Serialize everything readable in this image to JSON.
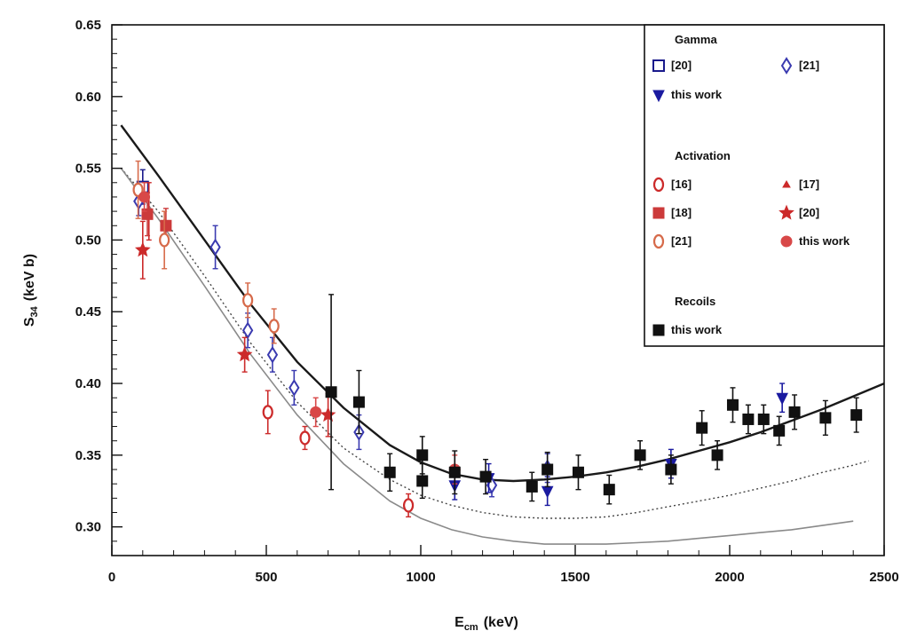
{
  "chart_data": {
    "type": "scatter",
    "xlabel": "E",
    "xlabel_sub": "cm",
    "xlabel_unit": "(keV)",
    "ylabel": "S",
    "ylabel_sub": "34",
    "ylabel_unit": "(keV b)",
    "xlim": [
      0,
      2500
    ],
    "ylim": [
      0.28,
      0.65
    ],
    "xticks": [
      0,
      500,
      1000,
      1500,
      2000,
      2500
    ],
    "yticks": [
      0.3,
      0.35,
      0.4,
      0.45,
      0.5,
      0.55,
      0.6,
      0.65
    ],
    "xtick_labels": [
      "0",
      "500",
      "1000",
      "1500",
      "2000",
      "2500"
    ],
    "ytick_labels": [
      "0.30",
      "0.35",
      "0.40",
      "0.45",
      "0.50",
      "0.55",
      "0.60",
      "0.65"
    ],
    "grid": false,
    "legend_position": "top-right",
    "legend_groups": [
      {
        "title": "Gamma",
        "entries": [
          {
            "label": "[20]",
            "series": "gamma_20"
          },
          {
            "label": "[21]",
            "series": "gamma_21"
          },
          {
            "label": "this work",
            "series": "gamma_this"
          }
        ]
      },
      {
        "title": "Activation",
        "entries": [
          {
            "label": "[16]",
            "series": "act_16"
          },
          {
            "label": "[17]",
            "series": "act_17"
          },
          {
            "label": "[18]",
            "series": "act_18"
          },
          {
            "label": "[20]",
            "series": "act_20"
          },
          {
            "label": "[21]",
            "series": "act_21"
          },
          {
            "label": "this work",
            "series": "act_this"
          }
        ]
      },
      {
        "title": "Recoils",
        "entries": [
          {
            "label": "this work",
            "series": "recoil_this"
          }
        ]
      }
    ],
    "series": [
      {
        "id": "gamma_20",
        "marker": "square-open",
        "color": "#1a1a8c",
        "points": [
          [
            100,
            0.537,
            0.012
          ]
        ]
      },
      {
        "id": "gamma_21",
        "marker": "diamond-open",
        "color": "#3a3ab0",
        "points": [
          [
            87,
            0.527,
            0.01
          ],
          [
            335,
            0.495,
            0.015
          ],
          [
            440,
            0.437,
            0.012
          ],
          [
            520,
            0.42,
            0.012
          ],
          [
            590,
            0.397,
            0.012
          ],
          [
            800,
            0.366,
            0.012
          ],
          [
            1230,
            0.329,
            0.008
          ],
          [
            1410,
            0.341,
            0.01
          ]
        ]
      },
      {
        "id": "gamma_this",
        "marker": "triangle-down",
        "color": "#1a1aa0",
        "points": [
          [
            1110,
            0.329,
            0.01
          ],
          [
            1220,
            0.334,
            0.01
          ],
          [
            1410,
            0.325,
            0.01
          ],
          [
            1810,
            0.344,
            0.01
          ],
          [
            2170,
            0.39,
            0.01
          ]
        ]
      },
      {
        "id": "act_16",
        "marker": "circle-open",
        "color": "#cc2a2a",
        "points": [
          [
            505,
            0.38,
            0.015
          ],
          [
            625,
            0.362,
            0.008
          ],
          [
            960,
            0.315,
            0.008
          ]
        ]
      },
      {
        "id": "act_17",
        "marker": "triangle-up",
        "color": "#cc2a2a",
        "points": [
          [
            120,
            0.52,
            0.02
          ]
        ]
      },
      {
        "id": "act_18",
        "marker": "square",
        "color": "#cc3a3a",
        "points": [
          [
            115,
            0.518,
            0.015
          ],
          [
            175,
            0.51,
            0.012
          ]
        ]
      },
      {
        "id": "act_20",
        "marker": "star",
        "color": "#cc2a2a",
        "points": [
          [
            100,
            0.493,
            0.02
          ],
          [
            430,
            0.42,
            0.012
          ],
          [
            700,
            0.378,
            0.015
          ]
        ]
      },
      {
        "id": "act_21",
        "marker": "circle-open",
        "color": "#d66a4a",
        "points": [
          [
            85,
            0.535,
            0.02
          ],
          [
            170,
            0.5,
            0.02
          ],
          [
            440,
            0.458,
            0.012
          ],
          [
            525,
            0.44,
            0.012
          ]
        ]
      },
      {
        "id": "act_this",
        "marker": "circle",
        "color": "#d84848",
        "points": [
          [
            105,
            0.53,
            0.01
          ],
          [
            1110,
            0.34,
            0.01
          ],
          [
            660,
            0.38,
            0.01
          ]
        ]
      },
      {
        "id": "recoil_this",
        "marker": "square",
        "color": "#111111",
        "points": [
          [
            710,
            0.394,
            0.068
          ],
          [
            800,
            0.387,
            0.022
          ],
          [
            900,
            0.338,
            0.013
          ],
          [
            1005,
            0.35,
            0.013
          ],
          [
            1005,
            0.332,
            0.012
          ],
          [
            1110,
            0.338,
            0.015
          ],
          [
            1210,
            0.335,
            0.012
          ],
          [
            1360,
            0.328,
            0.01
          ],
          [
            1410,
            0.34,
            0.012
          ],
          [
            1510,
            0.338,
            0.012
          ],
          [
            1610,
            0.326,
            0.01
          ],
          [
            1710,
            0.35,
            0.01
          ],
          [
            1810,
            0.34,
            0.01
          ],
          [
            1910,
            0.369,
            0.012
          ],
          [
            1960,
            0.35,
            0.01
          ],
          [
            2010,
            0.385,
            0.012
          ],
          [
            2060,
            0.375,
            0.01
          ],
          [
            2110,
            0.375,
            0.01
          ],
          [
            2160,
            0.367,
            0.01
          ],
          [
            2210,
            0.38,
            0.012
          ],
          [
            2310,
            0.376,
            0.012
          ],
          [
            2410,
            0.378,
            0.012
          ]
        ]
      }
    ],
    "curves": [
      {
        "id": "fit-solid",
        "style": "solid",
        "color": "#1a1a1a",
        "width": 2.4,
        "points": [
          [
            30,
            0.58
          ],
          [
            150,
            0.545
          ],
          [
            300,
            0.5
          ],
          [
            450,
            0.455
          ],
          [
            600,
            0.415
          ],
          [
            750,
            0.383
          ],
          [
            900,
            0.357
          ],
          [
            1000,
            0.345
          ],
          [
            1100,
            0.337
          ],
          [
            1200,
            0.333
          ],
          [
            1300,
            0.332
          ],
          [
            1400,
            0.333
          ],
          [
            1500,
            0.335
          ],
          [
            1600,
            0.338
          ],
          [
            1700,
            0.342
          ],
          [
            1800,
            0.347
          ],
          [
            1900,
            0.353
          ],
          [
            2000,
            0.359
          ],
          [
            2100,
            0.366
          ],
          [
            2200,
            0.374
          ],
          [
            2300,
            0.382
          ],
          [
            2400,
            0.391
          ],
          [
            2500,
            0.4
          ]
        ]
      },
      {
        "id": "model-dashed",
        "style": "dashed",
        "color": "#444444",
        "width": 1.4,
        "points": [
          [
            30,
            0.55
          ],
          [
            150,
            0.52
          ],
          [
            300,
            0.475
          ],
          [
            450,
            0.428
          ],
          [
            600,
            0.387
          ],
          [
            750,
            0.355
          ],
          [
            900,
            0.333
          ],
          [
            1000,
            0.322
          ],
          [
            1100,
            0.315
          ],
          [
            1200,
            0.31
          ],
          [
            1300,
            0.307
          ],
          [
            1400,
            0.306
          ],
          [
            1500,
            0.306
          ],
          [
            1600,
            0.307
          ],
          [
            1700,
            0.31
          ],
          [
            1800,
            0.314
          ],
          [
            1900,
            0.318
          ],
          [
            2000,
            0.322
          ],
          [
            2100,
            0.327
          ],
          [
            2200,
            0.332
          ],
          [
            2300,
            0.338
          ],
          [
            2400,
            0.343
          ],
          [
            2450,
            0.346
          ]
        ]
      },
      {
        "id": "model-gray",
        "style": "solid",
        "color": "#8a8a8a",
        "width": 1.6,
        "points": [
          [
            30,
            0.55
          ],
          [
            150,
            0.515
          ],
          [
            300,
            0.468
          ],
          [
            450,
            0.42
          ],
          [
            600,
            0.378
          ],
          [
            750,
            0.344
          ],
          [
            900,
            0.318
          ],
          [
            1000,
            0.306
          ],
          [
            1100,
            0.298
          ],
          [
            1200,
            0.293
          ],
          [
            1300,
            0.29
          ],
          [
            1400,
            0.288
          ],
          [
            1500,
            0.288
          ],
          [
            1600,
            0.288
          ],
          [
            1700,
            0.289
          ],
          [
            1800,
            0.29
          ],
          [
            1900,
            0.292
          ],
          [
            2000,
            0.294
          ],
          [
            2100,
            0.296
          ],
          [
            2200,
            0.298
          ],
          [
            2300,
            0.301
          ],
          [
            2400,
            0.304
          ]
        ]
      }
    ]
  }
}
